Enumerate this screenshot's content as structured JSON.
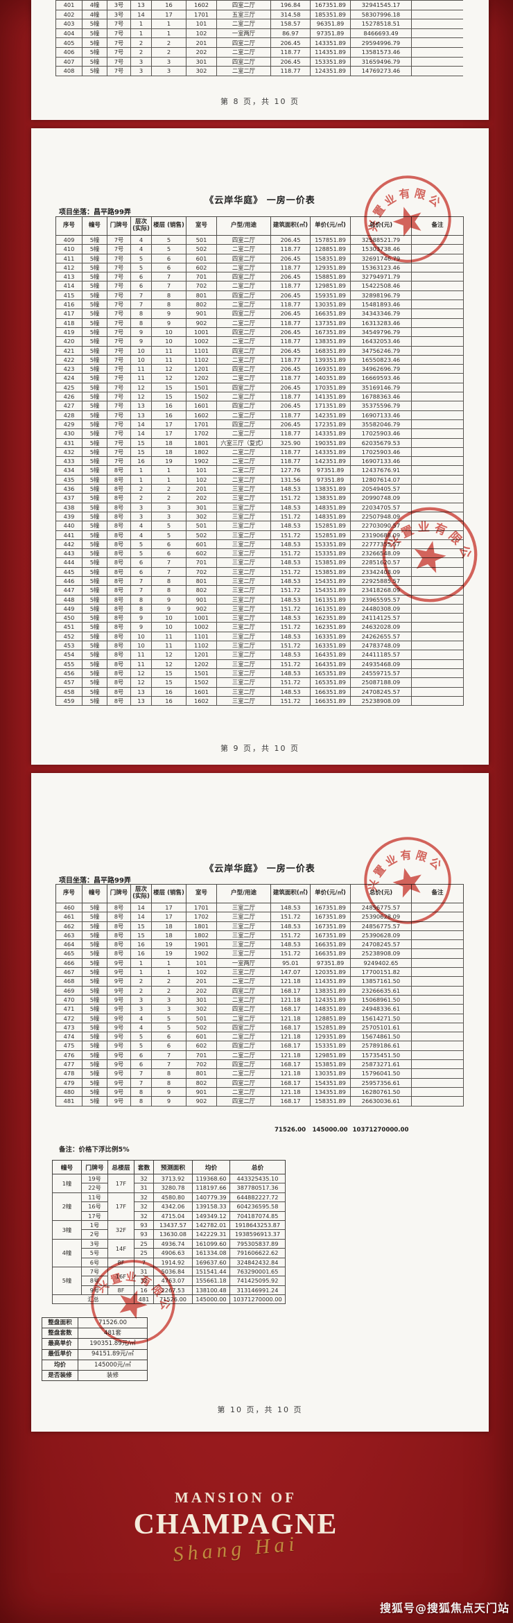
{
  "doc": {
    "title": "《云岸华庭》 一房一价表",
    "location_label": "项目坐落：昌平路99弄",
    "note": "备注：价格下浮比例5%",
    "footer_p8": "第 8 页，共 10 页",
    "footer_p9": "第 9 页，共 10 页",
    "footer_p10": "第 10 页，共 10 页",
    "columns": [
      "序号",
      "幢号",
      "门牌号",
      "层次\n(实际)",
      "楼层 (销售)",
      "室号",
      "户型/用途",
      "建筑面积(㎡)",
      "单价(元/㎡)",
      "总价(元)",
      "备注"
    ]
  },
  "stamp": {
    "arc_text": "兴置业有限公司",
    "color": "#cd3a31"
  },
  "brand": {
    "line1": "MANSION OF",
    "line2": "CHAMPAGNE",
    "script": "Shang Hai"
  },
  "watermark": "搜狐号@搜狐焦点天门站",
  "tables": {
    "p8_rows": [
      [
        "",
        "",
        "",
        "",
        "",
        "",
        "",
        "",
        "",
        "",
        ""
      ],
      [
        "401",
        "4幢",
        "3号",
        "13",
        "16",
        "1602",
        "四室二厅",
        "196.84",
        "167351.89",
        "32941545.17",
        ""
      ],
      [
        "402",
        "4幢",
        "3号",
        "14",
        "17",
        "1701",
        "五室三厅",
        "314.58",
        "185351.89",
        "58307996.18",
        ""
      ],
      [
        "403",
        "5幢",
        "7号",
        "1",
        "1",
        "101",
        "二室二厅",
        "158.57",
        "96351.89",
        "15278518.51",
        ""
      ],
      [
        "404",
        "5幢",
        "7号",
        "1",
        "1",
        "102",
        "一室两厅",
        "86.97",
        "97351.89",
        "8466693.49",
        ""
      ],
      [
        "405",
        "5幢",
        "7号",
        "2",
        "2",
        "201",
        "四室二厅",
        "206.45",
        "143351.89",
        "29594996.79",
        ""
      ],
      [
        "406",
        "5幢",
        "7号",
        "2",
        "2",
        "202",
        "二室二厅",
        "118.77",
        "114351.89",
        "13581573.46",
        ""
      ],
      [
        "407",
        "5幢",
        "7号",
        "3",
        "3",
        "301",
        "四室二厅",
        "206.45",
        "153351.89",
        "31659496.79",
        ""
      ],
      [
        "408",
        "5幢",
        "7号",
        "3",
        "3",
        "302",
        "二室二厅",
        "118.77",
        "124351.89",
        "14769273.46",
        ""
      ]
    ],
    "p9_rows": [
      [
        "409",
        "5幢",
        "7号",
        "4",
        "5",
        "501",
        "四室二厅",
        "206.45",
        "157851.89",
        "32588521.79",
        ""
      ],
      [
        "410",
        "5幢",
        "7号",
        "4",
        "5",
        "502",
        "二室二厅",
        "118.77",
        "128851.89",
        "15303738.46",
        ""
      ],
      [
        "411",
        "5幢",
        "7号",
        "5",
        "6",
        "601",
        "四室二厅",
        "206.45",
        "158351.89",
        "32691746.79",
        ""
      ],
      [
        "412",
        "5幢",
        "7号",
        "5",
        "6",
        "602",
        "二室二厅",
        "118.77",
        "129351.89",
        "15363123.46",
        ""
      ],
      [
        "413",
        "5幢",
        "7号",
        "6",
        "7",
        "701",
        "四室二厅",
        "206.45",
        "158851.89",
        "32794971.79",
        ""
      ],
      [
        "414",
        "5幢",
        "7号",
        "6",
        "7",
        "702",
        "二室二厅",
        "118.77",
        "129851.89",
        "15422508.46",
        ""
      ],
      [
        "415",
        "5幢",
        "7号",
        "7",
        "8",
        "801",
        "四室二厅",
        "206.45",
        "159351.89",
        "32898196.79",
        ""
      ],
      [
        "416",
        "5幢",
        "7号",
        "7",
        "8",
        "802",
        "二室二厅",
        "118.77",
        "130351.89",
        "15481893.46",
        ""
      ],
      [
        "417",
        "5幢",
        "7号",
        "8",
        "9",
        "901",
        "四室二厅",
        "206.45",
        "166351.89",
        "34343346.79",
        ""
      ],
      [
        "418",
        "5幢",
        "7号",
        "8",
        "9",
        "902",
        "二室二厅",
        "118.77",
        "137351.89",
        "16313283.46",
        ""
      ],
      [
        "419",
        "5幢",
        "7号",
        "9",
        "10",
        "1001",
        "四室二厅",
        "206.45",
        "167351.89",
        "34549796.79",
        ""
      ],
      [
        "420",
        "5幢",
        "7号",
        "9",
        "10",
        "1002",
        "二室二厅",
        "118.77",
        "138351.89",
        "16432053.46",
        ""
      ],
      [
        "421",
        "5幢",
        "7号",
        "10",
        "11",
        "1101",
        "四室二厅",
        "206.45",
        "168351.89",
        "34756246.79",
        ""
      ],
      [
        "422",
        "5幢",
        "7号",
        "10",
        "11",
        "1102",
        "二室二厅",
        "118.77",
        "139351.89",
        "16550823.46",
        ""
      ],
      [
        "423",
        "5幢",
        "7号",
        "11",
        "12",
        "1201",
        "四室二厅",
        "206.45",
        "169351.89",
        "34962696.79",
        ""
      ],
      [
        "424",
        "5幢",
        "7号",
        "11",
        "12",
        "1202",
        "二室二厅",
        "118.77",
        "140351.89",
        "16669593.46",
        ""
      ],
      [
        "425",
        "5幢",
        "7号",
        "12",
        "15",
        "1501",
        "四室二厅",
        "206.45",
        "170351.89",
        "35169146.79",
        ""
      ],
      [
        "426",
        "5幢",
        "7号",
        "12",
        "15",
        "1502",
        "二室二厅",
        "118.77",
        "141351.89",
        "16788363.46",
        ""
      ],
      [
        "427",
        "5幢",
        "7号",
        "13",
        "16",
        "1601",
        "四室二厅",
        "206.45",
        "171351.89",
        "35375596.79",
        ""
      ],
      [
        "428",
        "5幢",
        "7号",
        "13",
        "16",
        "1602",
        "二室二厅",
        "118.77",
        "142351.89",
        "16907133.46",
        ""
      ],
      [
        "429",
        "5幢",
        "7号",
        "14",
        "17",
        "1701",
        "四室二厅",
        "206.45",
        "172351.89",
        "35582046.79",
        ""
      ],
      [
        "430",
        "5幢",
        "7号",
        "14",
        "17",
        "1702",
        "二室二厅",
        "118.77",
        "143351.89",
        "17025903.46",
        ""
      ],
      [
        "431",
        "5幢",
        "7号",
        "15",
        "18",
        "1801",
        "六室三厅（复式）",
        "325.90",
        "190351.89",
        "62035679.53",
        ""
      ],
      [
        "432",
        "5幢",
        "7号",
        "15",
        "18",
        "1802",
        "二室二厅",
        "118.77",
        "143351.89",
        "17025903.46",
        ""
      ],
      [
        "433",
        "5幢",
        "7号",
        "16",
        "19",
        "1902",
        "二室二厅",
        "118.77",
        "142351.89",
        "16907133.46",
        ""
      ],
      [
        "434",
        "5幢",
        "8号",
        "1",
        "1",
        "101",
        "二室二厅",
        "127.76",
        "97351.89",
        "12437676.91",
        ""
      ],
      [
        "435",
        "5幢",
        "8号",
        "1",
        "1",
        "102",
        "二室二厅",
        "131.56",
        "97351.89",
        "12807614.07",
        ""
      ],
      [
        "436",
        "5幢",
        "8号",
        "2",
        "2",
        "201",
        "三室二厅",
        "148.53",
        "138351.89",
        "20549405.57",
        ""
      ],
      [
        "437",
        "5幢",
        "8号",
        "2",
        "2",
        "202",
        "三室二厅",
        "151.72",
        "138351.89",
        "20990748.09",
        ""
      ],
      [
        "438",
        "5幢",
        "8号",
        "3",
        "3",
        "301",
        "三室二厅",
        "148.53",
        "148351.89",
        "22034705.57",
        ""
      ],
      [
        "439",
        "5幢",
        "8号",
        "3",
        "3",
        "302",
        "三室二厅",
        "151.72",
        "148351.89",
        "22507948.09",
        ""
      ],
      [
        "440",
        "5幢",
        "8号",
        "4",
        "5",
        "501",
        "三室二厅",
        "148.53",
        "152851.89",
        "22703090.57",
        ""
      ],
      [
        "441",
        "5幢",
        "8号",
        "4",
        "5",
        "502",
        "三室二厅",
        "151.72",
        "152851.89",
        "23190688.09",
        ""
      ],
      [
        "442",
        "5幢",
        "8号",
        "5",
        "6",
        "601",
        "三室二厅",
        "148.53",
        "153351.89",
        "22777355.57",
        ""
      ],
      [
        "443",
        "5幢",
        "8号",
        "5",
        "6",
        "602",
        "三室二厅",
        "151.72",
        "153351.89",
        "23266548.09",
        ""
      ],
      [
        "444",
        "5幢",
        "8号",
        "6",
        "7",
        "701",
        "三室二厅",
        "148.53",
        "153851.89",
        "22851620.57",
        ""
      ],
      [
        "445",
        "5幢",
        "8号",
        "6",
        "7",
        "702",
        "三室二厅",
        "151.72",
        "153851.89",
        "23342408.09",
        ""
      ],
      [
        "446",
        "5幢",
        "8号",
        "7",
        "8",
        "801",
        "三室二厅",
        "148.53",
        "154351.89",
        "22925885.57",
        ""
      ],
      [
        "447",
        "5幢",
        "8号",
        "7",
        "8",
        "802",
        "三室二厅",
        "151.72",
        "154351.89",
        "23418268.09",
        ""
      ],
      [
        "448",
        "5幢",
        "8号",
        "8",
        "9",
        "901",
        "三室二厅",
        "148.53",
        "161351.89",
        "23965595.57",
        ""
      ],
      [
        "449",
        "5幢",
        "8号",
        "8",
        "9",
        "902",
        "三室二厅",
        "151.72",
        "161351.89",
        "24480308.09",
        ""
      ],
      [
        "450",
        "5幢",
        "8号",
        "9",
        "10",
        "1001",
        "三室二厅",
        "148.53",
        "162351.89",
        "24114125.57",
        ""
      ],
      [
        "451",
        "5幢",
        "8号",
        "9",
        "10",
        "1002",
        "三室二厅",
        "151.72",
        "162351.89",
        "24632028.09",
        ""
      ],
      [
        "452",
        "5幢",
        "8号",
        "10",
        "11",
        "1101",
        "三室二厅",
        "148.53",
        "163351.89",
        "24262655.57",
        ""
      ],
      [
        "453",
        "5幢",
        "8号",
        "10",
        "11",
        "1102",
        "三室二厅",
        "151.72",
        "163351.89",
        "24783748.09",
        ""
      ],
      [
        "454",
        "5幢",
        "8号",
        "11",
        "12",
        "1201",
        "三室二厅",
        "148.53",
        "164351.89",
        "24411185.57",
        ""
      ],
      [
        "455",
        "5幢",
        "8号",
        "11",
        "12",
        "1202",
        "三室二厅",
        "151.72",
        "164351.89",
        "24935468.09",
        ""
      ],
      [
        "456",
        "5幢",
        "8号",
        "12",
        "15",
        "1501",
        "三室二厅",
        "148.53",
        "165351.89",
        "24559715.57",
        ""
      ],
      [
        "457",
        "5幢",
        "8号",
        "12",
        "15",
        "1502",
        "三室二厅",
        "151.72",
        "165351.89",
        "25087188.09",
        ""
      ],
      [
        "458",
        "5幢",
        "8号",
        "13",
        "16",
        "1601",
        "三室二厅",
        "148.53",
        "166351.89",
        "24708245.57",
        ""
      ],
      [
        "459",
        "5幢",
        "8号",
        "13",
        "16",
        "1602",
        "三室二厅",
        "151.72",
        "166351.89",
        "25238908.09",
        ""
      ]
    ],
    "p10_rows": [
      [
        "460",
        "5幢",
        "8号",
        "14",
        "17",
        "1701",
        "三室二厅",
        "148.53",
        "167351.89",
        "24856775.57",
        ""
      ],
      [
        "461",
        "5幢",
        "8号",
        "14",
        "17",
        "1702",
        "三室二厅",
        "151.72",
        "167351.89",
        "25390628.09",
        ""
      ],
      [
        "462",
        "5幢",
        "8号",
        "15",
        "18",
        "1801",
        "三室二厅",
        "148.53",
        "167351.89",
        "24856775.57",
        ""
      ],
      [
        "463",
        "5幢",
        "8号",
        "15",
        "18",
        "1802",
        "三室二厅",
        "151.72",
        "167351.89",
        "25390628.09",
        ""
      ],
      [
        "464",
        "5幢",
        "8号",
        "16",
        "19",
        "1901",
        "三室二厅",
        "148.53",
        "166351.89",
        "24708245.57",
        ""
      ],
      [
        "465",
        "5幢",
        "8号",
        "16",
        "19",
        "1902",
        "三室二厅",
        "151.72",
        "166351.89",
        "25238908.09",
        ""
      ],
      [
        "466",
        "5幢",
        "9号",
        "1",
        "1",
        "101",
        "一室两厅",
        "95.01",
        "97351.89",
        "9249402.65",
        ""
      ],
      [
        "467",
        "5幢",
        "9号",
        "1",
        "1",
        "102",
        "三室二厅",
        "147.07",
        "120351.89",
        "17700151.82",
        ""
      ],
      [
        "468",
        "5幢",
        "9号",
        "2",
        "2",
        "201",
        "二室二厅",
        "121.18",
        "114351.89",
        "13857161.50",
        ""
      ],
      [
        "469",
        "5幢",
        "9号",
        "2",
        "2",
        "202",
        "四室二厅",
        "168.17",
        "138351.89",
        "23266635.61",
        ""
      ],
      [
        "470",
        "5幢",
        "9号",
        "3",
        "3",
        "301",
        "二室二厅",
        "121.18",
        "124351.89",
        "15068961.50",
        ""
      ],
      [
        "471",
        "5幢",
        "9号",
        "3",
        "3",
        "302",
        "四室二厅",
        "168.17",
        "148351.89",
        "24948336.61",
        ""
      ],
      [
        "472",
        "5幢",
        "9号",
        "4",
        "5",
        "501",
        "二室二厅",
        "121.18",
        "128851.89",
        "15614271.50",
        ""
      ],
      [
        "473",
        "5幢",
        "9号",
        "4",
        "5",
        "502",
        "四室二厅",
        "168.17",
        "152851.89",
        "25705101.61",
        ""
      ],
      [
        "474",
        "5幢",
        "9号",
        "5",
        "6",
        "601",
        "二室二厅",
        "121.18",
        "129351.89",
        "15674861.50",
        ""
      ],
      [
        "475",
        "5幢",
        "9号",
        "5",
        "6",
        "602",
        "四室二厅",
        "168.17",
        "153351.89",
        "25789186.61",
        ""
      ],
      [
        "476",
        "5幢",
        "9号",
        "6",
        "7",
        "701",
        "二室二厅",
        "121.18",
        "129851.89",
        "15735451.50",
        ""
      ],
      [
        "477",
        "5幢",
        "9号",
        "6",
        "7",
        "702",
        "四室二厅",
        "168.17",
        "153851.89",
        "25873271.61",
        ""
      ],
      [
        "478",
        "5幢",
        "9号",
        "7",
        "8",
        "801",
        "二室二厅",
        "121.18",
        "130351.89",
        "15796041.50",
        ""
      ],
      [
        "479",
        "5幢",
        "9号",
        "7",
        "8",
        "802",
        "四室二厅",
        "168.17",
        "154351.89",
        "25957356.61",
        ""
      ],
      [
        "480",
        "5幢",
        "9号",
        "8",
        "9",
        "901",
        "二室二厅",
        "121.18",
        "134351.89",
        "16280761.50",
        ""
      ],
      [
        "481",
        "5幢",
        "9号",
        "8",
        "9",
        "902",
        "四室二厅",
        "168.17",
        "158351.89",
        "26630036.61",
        ""
      ]
    ],
    "p10_totals_rows": [
      [
        "",
        "",
        "",
        "",
        "",
        "",
        "",
        "71526.00",
        "145000.00",
        "10371270000.00",
        ""
      ]
    ],
    "summary": {
      "headers": [
        "幢号",
        "门牌号",
        "总楼层",
        "套数",
        "预测面积",
        "均价",
        "总价"
      ],
      "rows": [
        [
          {
            "t": "1幢",
            "rs": 2
          },
          "19号",
          {
            "t": "17F",
            "rs": 2
          },
          "32",
          "3713.92",
          "119368.60",
          "443325435.10"
        ],
        [
          "22号",
          "31",
          "3280.78",
          "118197.66",
          "387780517.36"
        ],
        [
          {
            "t": "2幢",
            "rs": 3
          },
          "11号",
          {
            "t": "17F",
            "rs": 3
          },
          "32",
          "4580.80",
          "140779.39",
          "644882227.72"
        ],
        [
          "16号",
          "32",
          "4342.06",
          "139158.33",
          "604236595.58"
        ],
        [
          "17号",
          "32",
          "4715.04",
          "149349.12",
          "704187074.85"
        ],
        [
          {
            "t": "3幢",
            "rs": 2
          },
          "1号",
          {
            "t": "32F",
            "rs": 2
          },
          "93",
          "13437.57",
          "142782.01",
          "1918643253.87"
        ],
        [
          "2号",
          "93",
          "13630.08",
          "142229.31",
          "1938596913.37"
        ],
        [
          {
            "t": "4幢",
            "rs": 3
          },
          "3号",
          {
            "t": "14F",
            "rs": 2
          },
          "25",
          "4936.74",
          "161099.60",
          "795305837.89"
        ],
        [
          "5号",
          "25",
          "4906.63",
          "161334.08",
          "791606622.62"
        ],
        [
          "6号",
          "8F",
          "7",
          "1914.92",
          "169637.60",
          "324842432.84"
        ],
        [
          {
            "t": "5幢",
            "rs": 3
          },
          "7号",
          {
            "t": "16F",
            "rs": 2
          },
          "31",
          "5036.84",
          "151541.44",
          "763290001.65"
        ],
        [
          "8号",
          "32",
          "4763.07",
          "155661.18",
          "741425095.92"
        ],
        [
          "9号",
          "8F",
          "16",
          "2267.53",
          "138100.48",
          "313146991.24"
        ],
        [
          {
            "t": "汇总",
            "cs": 3
          },
          "481",
          "71526.00",
          "145000.00",
          "10371270000.00"
        ]
      ]
    },
    "info_rows": [
      [
        "整盘面积",
        "71526.00"
      ],
      [
        "整盘套数",
        "481套"
      ],
      [
        "最高单价",
        "190351.89元/㎡"
      ],
      [
        "最低单价",
        "94151.89元/㎡"
      ],
      [
        "均价",
        "145000元/㎡"
      ],
      [
        "是否装修",
        "装修"
      ]
    ]
  }
}
